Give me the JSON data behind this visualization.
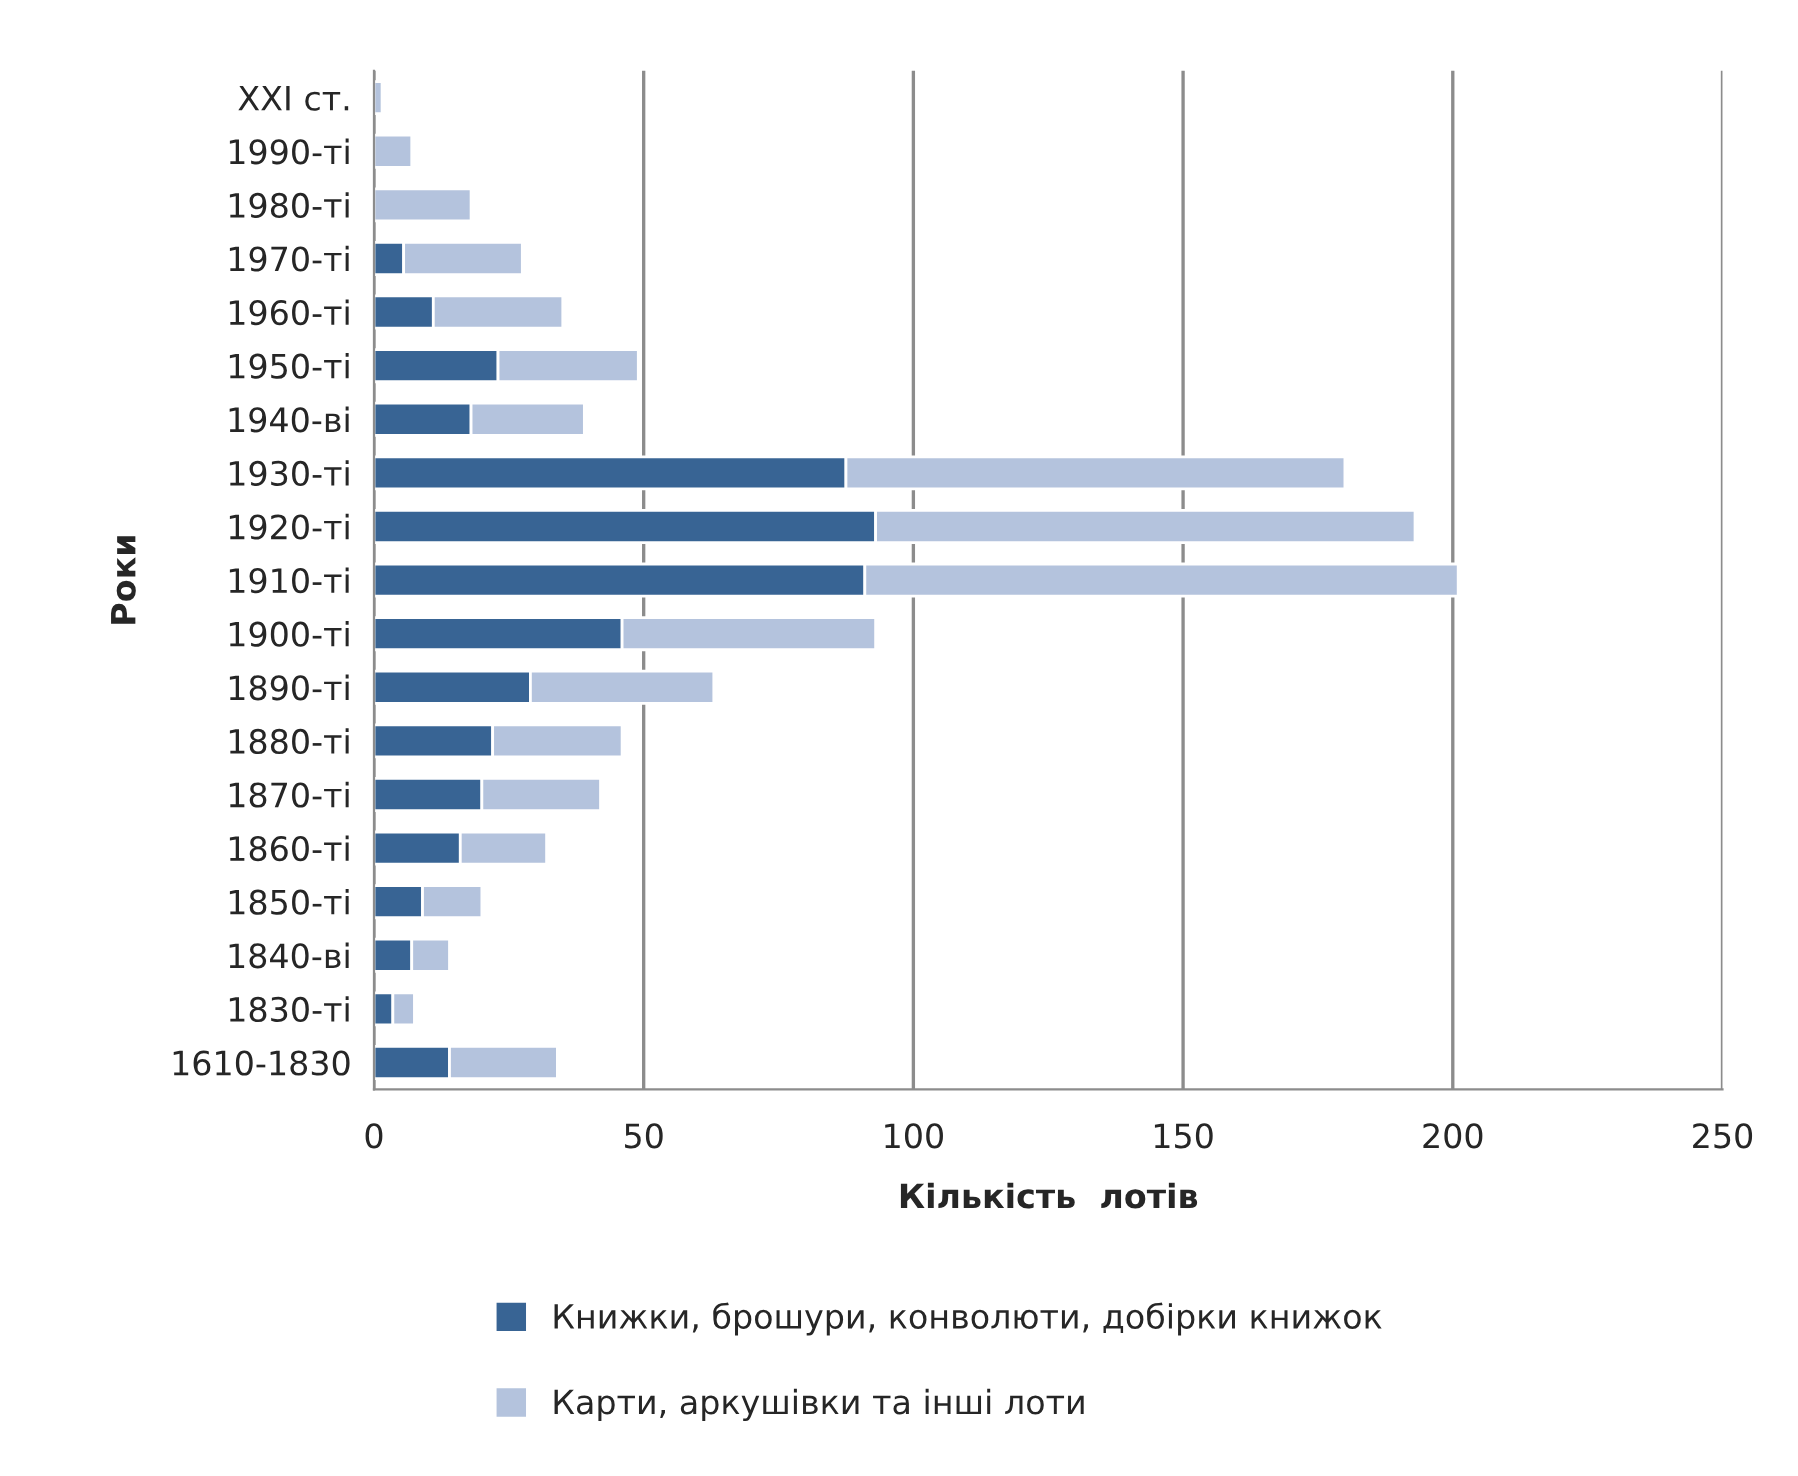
{
  "chart_data": {
    "type": "bar",
    "orientation": "horizontal",
    "stacked": true,
    "xlabel": "Кількість  лотів",
    "ylabel": "Роки",
    "categories": [
      "XXI ст.",
      "1990-ті",
      "1980-ті",
      "1970-ті",
      "1960-ті",
      "1950-ті",
      "1940-ві",
      "1930-ті",
      "1920-ті",
      "1910-ті",
      "1900-ті",
      "1890-ті",
      "1880-ті",
      "1870-ті",
      "1860-ті",
      "1850-ті",
      "1840-ві",
      "1830-ті",
      "1610-1830"
    ],
    "series": [
      {
        "name": "Книжки, брошури, конволюти, добірки книжок",
        "color": "#386494",
        "values": [
          0,
          0,
          0,
          5.5,
          11,
          23,
          18,
          87.5,
          93,
          91,
          46,
          29,
          22,
          20,
          16,
          9,
          7,
          3.5,
          14
        ]
      },
      {
        "name": "Карти, аркушівки та інші лоти",
        "color": "#b4c3dd",
        "values": [
          1.5,
          7,
          18,
          22,
          24,
          26,
          21,
          92.5,
          100,
          110,
          47,
          34,
          24,
          22,
          16,
          11,
          7,
          4,
          20
        ]
      }
    ],
    "xlim": [
      0,
      250
    ],
    "xticks": [
      0,
      50,
      100,
      150,
      200,
      250
    ],
    "grid": "x",
    "legend": "bottom"
  }
}
